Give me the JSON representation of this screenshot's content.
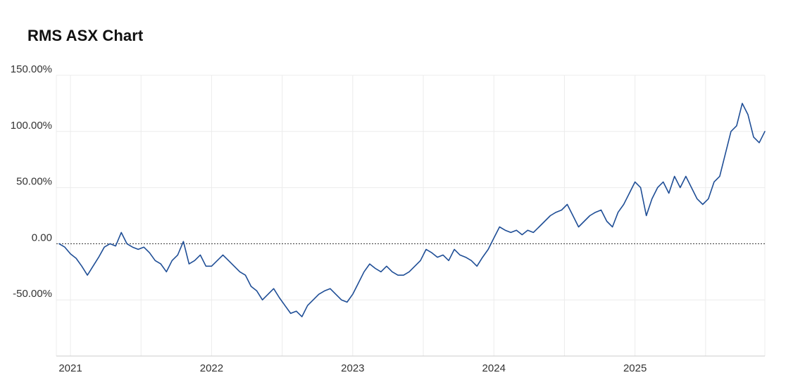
{
  "title": "RMS ASX Chart",
  "colors": {
    "line": "#1f4e96",
    "grid": "#ececec",
    "zero_line": "#333333",
    "axis": "#cccccc"
  },
  "chart_data": {
    "type": "line",
    "title": "RMS ASX Chart",
    "xlabel": "",
    "ylabel": "",
    "x_range": [
      2020.9,
      2025.92
    ],
    "ylim": [
      -100,
      150
    ],
    "y_ticks": [
      150,
      100,
      50,
      0,
      -50
    ],
    "y_tick_labels": [
      "150.00%",
      "100.00%",
      "50.00%",
      "0.00",
      "-50.00%"
    ],
    "x_ticks": [
      2021,
      2022,
      2023,
      2024,
      2025
    ],
    "x_tick_labels": [
      "2021",
      "2022",
      "2023",
      "2024",
      "2025"
    ],
    "x_minor_gridlines": [
      2021.5,
      2022.5,
      2023.5,
      2024.5,
      2025.5
    ],
    "zero_line": "dotted",
    "grid": true,
    "series": [
      {
        "x": [
          2020.92,
          2020.96,
          2021.0,
          2021.04,
          2021.08,
          2021.12,
          2021.16,
          2021.2,
          2021.24,
          2021.28,
          2021.32,
          2021.36,
          2021.4,
          2021.44,
          2021.48,
          2021.52,
          2021.56,
          2021.6,
          2021.64,
          2021.68,
          2021.72,
          2021.76,
          2021.8,
          2021.84,
          2021.88,
          2021.92,
          2021.96,
          2022.0,
          2022.04,
          2022.08,
          2022.12,
          2022.16,
          2022.2,
          2022.24,
          2022.28,
          2022.32,
          2022.36,
          2022.4,
          2022.44,
          2022.48,
          2022.52,
          2022.56,
          2022.6,
          2022.64,
          2022.68,
          2022.72,
          2022.76,
          2022.8,
          2022.84,
          2022.88,
          2022.92,
          2022.96,
          2023.0,
          2023.04,
          2023.08,
          2023.12,
          2023.16,
          2023.2,
          2023.24,
          2023.28,
          2023.32,
          2023.36,
          2023.4,
          2023.44,
          2023.48,
          2023.52,
          2023.56,
          2023.6,
          2023.64,
          2023.68,
          2023.72,
          2023.76,
          2023.8,
          2023.84,
          2023.88,
          2023.92,
          2023.96,
          2024.0,
          2024.04,
          2024.08,
          2024.12,
          2024.16,
          2024.2,
          2024.24,
          2024.28,
          2024.32,
          2024.36,
          2024.4,
          2024.44,
          2024.48,
          2024.52,
          2024.56,
          2024.6,
          2024.64,
          2024.68,
          2024.72,
          2024.76,
          2024.8,
          2024.84,
          2024.88,
          2024.92,
          2024.96,
          2025.0,
          2025.04,
          2025.08,
          2025.12,
          2025.16,
          2025.2,
          2025.24,
          2025.28,
          2025.32,
          2025.36,
          2025.4,
          2025.44,
          2025.48,
          2025.52,
          2025.56,
          2025.6,
          2025.64,
          2025.68,
          2025.72,
          2025.76,
          2025.8,
          2025.84,
          2025.88,
          2025.92
        ],
        "values": [
          0,
          -3,
          -9,
          -13,
          -20,
          -28,
          -20,
          -12,
          -3,
          0,
          -2,
          10,
          0,
          -3,
          -5,
          -3,
          -8,
          -15,
          -18,
          -25,
          -15,
          -10,
          2,
          -18,
          -15,
          -10,
          -20,
          -20,
          -15,
          -10,
          -15,
          -20,
          -25,
          -28,
          -38,
          -42,
          -50,
          -45,
          -40,
          -48,
          -55,
          -62,
          -60,
          -65,
          -55,
          -50,
          -45,
          -42,
          -40,
          -45,
          -50,
          -52,
          -45,
          -35,
          -25,
          -18,
          -22,
          -25,
          -20,
          -25,
          -28,
          -28,
          -25,
          -20,
          -15,
          -5,
          -8,
          -12,
          -10,
          -15,
          -5,
          -10,
          -12,
          -15,
          -20,
          -12,
          -5,
          5,
          15,
          12,
          10,
          12,
          8,
          12,
          10,
          15,
          20,
          25,
          28,
          30,
          35,
          25,
          15,
          20,
          25,
          28,
          30,
          20,
          15,
          28,
          35,
          45,
          55,
          50,
          25,
          40,
          50,
          55,
          45,
          60,
          50,
          60,
          50,
          40,
          35,
          40,
          55,
          60,
          80,
          100,
          105,
          125,
          115,
          95,
          90,
          100
        ]
      }
    ]
  }
}
